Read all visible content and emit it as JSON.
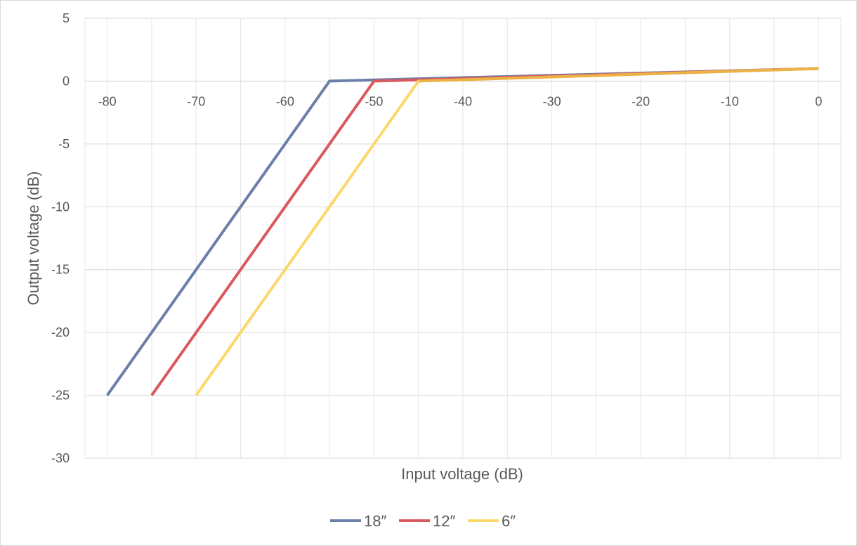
{
  "chart_data": {
    "type": "line",
    "title": "",
    "xlabel": "Input voltage (dB)",
    "ylabel": "Output voltage (dB)",
    "xlim": [
      -82.5,
      2.5
    ],
    "ylim": [
      -30,
      5
    ],
    "x_ticks": [
      -80,
      -70,
      -60,
      -50,
      -40,
      -30,
      -20,
      -10,
      0
    ],
    "y_ticks": [
      5,
      0,
      -5,
      -10,
      -15,
      -20,
      -25,
      -30
    ],
    "grid": true,
    "legend_position": "bottom",
    "series": [
      {
        "name": "18″",
        "color": "#6B7FA8",
        "x": [
          -80,
          -55,
          0
        ],
        "y": [
          -25,
          0,
          1
        ]
      },
      {
        "name": "12″",
        "color": "#D9595F",
        "x": [
          -75,
          -50,
          0
        ],
        "y": [
          -25,
          0,
          1
        ]
      },
      {
        "name": "6″",
        "color": "#FBD86A",
        "x": [
          -70,
          -45,
          0
        ],
        "y": [
          -25,
          0,
          1
        ]
      }
    ],
    "overlap_color": "#E0922A"
  }
}
